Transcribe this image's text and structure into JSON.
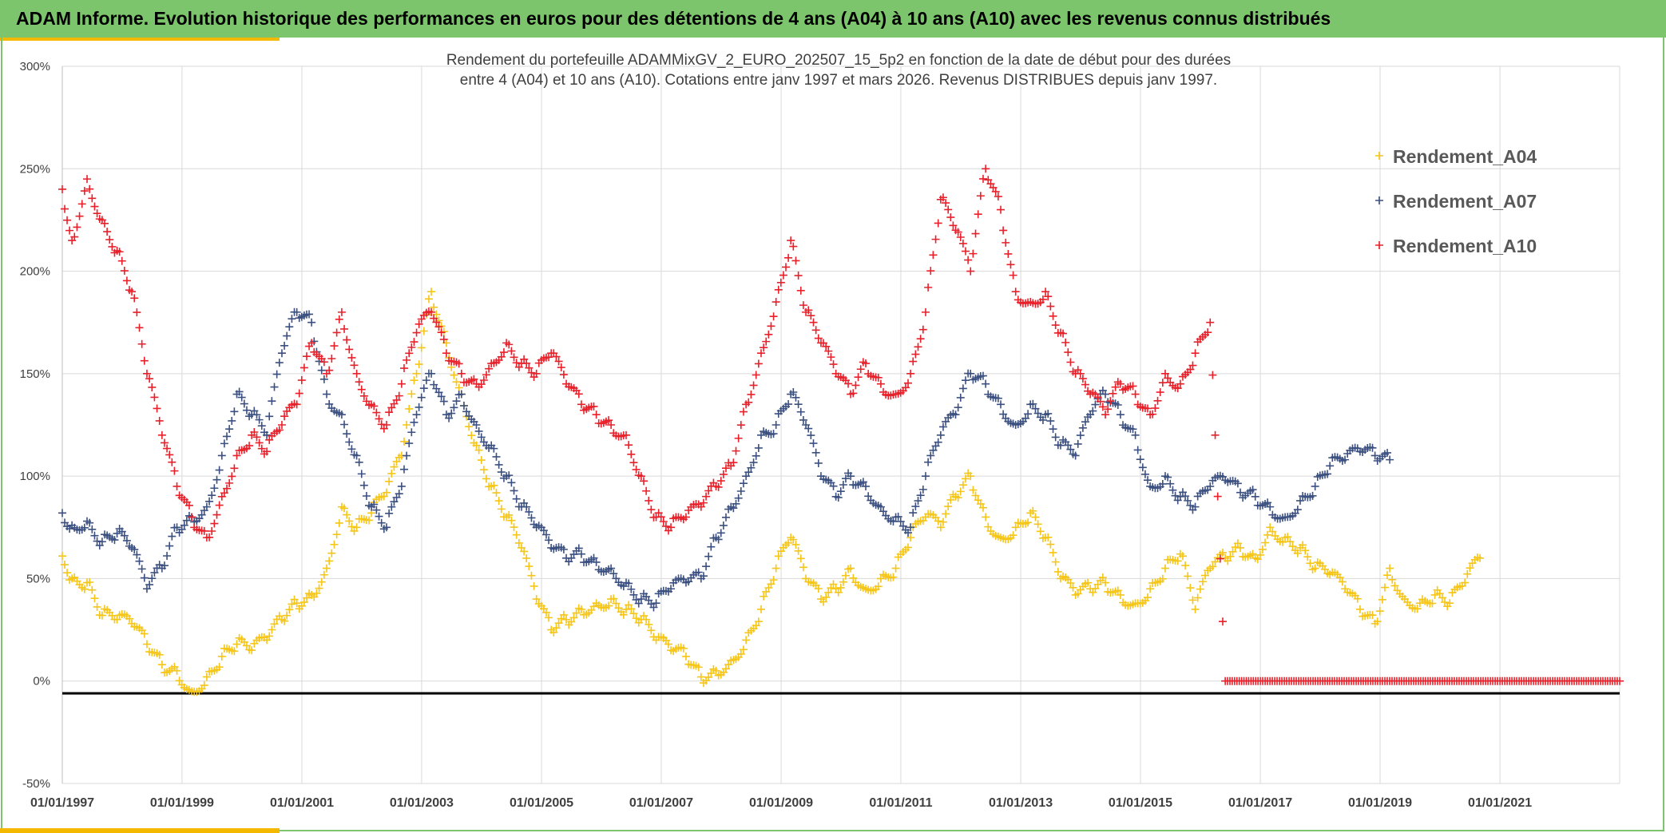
{
  "header": {
    "title": "ADAM Informe. Evolution historique des performances en euros pour des détentions de 4 ans (A04) à 10 ans (A10) avec les revenus connus distribués"
  },
  "colors": {
    "header_bg": "#7dc56c",
    "accent": "#f5b800",
    "A04": "#f5c518",
    "A07": "#3b5080",
    "A10": "#e8202a"
  },
  "chart_data": {
    "type": "scatter",
    "title_line1": "Rendement du portefeuille ADAMMixGV_2_EURO_202507_15_5p2  en fonction de la date de début pour des durées",
    "title_line2": "entre 4 (A04) et 10 ans (A10). Cotations entre janv 1997 et mars 2026. Revenus DISTRIBUES depuis janv 1997.",
    "x_axis": {
      "type": "date",
      "min": "1997-01-01",
      "max": "2023-01-01",
      "tick_labels": [
        "01/01/1997",
        "01/01/1999",
        "01/01/2001",
        "01/01/2003",
        "01/01/2005",
        "01/01/2007",
        "01/01/2009",
        "01/01/2011",
        "01/01/2013",
        "01/01/2015",
        "01/01/2017",
        "01/01/2019",
        "01/01/2021"
      ]
    },
    "y_axis": {
      "min": -50,
      "max": 300,
      "step": 50,
      "unit": "%",
      "tick_labels": [
        "300%",
        "250%",
        "200%",
        "150%",
        "100%",
        "50%",
        "0%",
        "-50%"
      ]
    },
    "grid": true,
    "legend": {
      "position": "top-right"
    },
    "reference_line_y": -6,
    "series": [
      {
        "name": "Rendement_A04",
        "color": "#f5c518",
        "points": [
          [
            "1997-01-01",
            61
          ],
          [
            "1997-03-01",
            50
          ],
          [
            "1997-06-01",
            48
          ],
          [
            "1997-09-01",
            32
          ],
          [
            "1997-12-01",
            30
          ],
          [
            "1998-03-01",
            28
          ],
          [
            "1998-06-01",
            18
          ],
          [
            "1998-09-01",
            8
          ],
          [
            "1998-12-01",
            5
          ],
          [
            "1999-03-01",
            -5
          ],
          [
            "1999-06-01",
            2
          ],
          [
            "1999-09-01",
            12
          ],
          [
            "1999-12-01",
            18
          ],
          [
            "2000-03-01",
            15
          ],
          [
            "2000-06-01",
            20
          ],
          [
            "2000-09-01",
            30
          ],
          [
            "2000-12-01",
            38
          ],
          [
            "2001-03-01",
            42
          ],
          [
            "2001-06-01",
            55
          ],
          [
            "2001-09-01",
            85
          ],
          [
            "2001-12-01",
            75
          ],
          [
            "2002-03-01",
            82
          ],
          [
            "2002-06-01",
            92
          ],
          [
            "2002-09-01",
            110
          ],
          [
            "2002-12-01",
            150
          ],
          [
            "2003-03-01",
            190
          ],
          [
            "2003-06-01",
            165
          ],
          [
            "2003-09-01",
            140
          ],
          [
            "2003-12-01",
            115
          ],
          [
            "2004-03-01",
            95
          ],
          [
            "2004-06-01",
            80
          ],
          [
            "2004-09-01",
            65
          ],
          [
            "2004-12-01",
            40
          ],
          [
            "2005-03-01",
            25
          ],
          [
            "2005-06-01",
            30
          ],
          [
            "2005-09-01",
            35
          ],
          [
            "2005-12-01",
            38
          ],
          [
            "2006-03-01",
            40
          ],
          [
            "2006-06-01",
            35
          ],
          [
            "2006-09-01",
            30
          ],
          [
            "2006-12-01",
            20
          ],
          [
            "2007-03-01",
            15
          ],
          [
            "2007-06-01",
            12
          ],
          [
            "2007-09-01",
            2
          ],
          [
            "2007-12-01",
            5
          ],
          [
            "2008-03-01",
            10
          ],
          [
            "2008-06-01",
            20
          ],
          [
            "2008-09-01",
            35
          ],
          [
            "2008-12-01",
            55
          ],
          [
            "2009-03-01",
            70
          ],
          [
            "2009-06-01",
            50
          ],
          [
            "2009-09-01",
            40
          ],
          [
            "2009-12-01",
            45
          ],
          [
            "2010-03-01",
            55
          ],
          [
            "2010-06-01",
            45
          ],
          [
            "2010-09-01",
            50
          ],
          [
            "2010-12-01",
            55
          ],
          [
            "2011-03-01",
            70
          ],
          [
            "2011-06-01",
            80
          ],
          [
            "2011-09-01",
            75
          ],
          [
            "2011-12-01",
            90
          ],
          [
            "2012-03-01",
            100
          ],
          [
            "2012-06-01",
            80
          ],
          [
            "2012-09-01",
            70
          ],
          [
            "2012-12-01",
            75
          ],
          [
            "2013-03-01",
            82
          ],
          [
            "2013-06-01",
            70
          ],
          [
            "2013-09-01",
            50
          ],
          [
            "2013-12-01",
            42
          ],
          [
            "2014-03-01",
            45
          ],
          [
            "2014-06-01",
            48
          ],
          [
            "2014-09-01",
            42
          ],
          [
            "2014-12-01",
            38
          ],
          [
            "2015-03-01",
            45
          ],
          [
            "2015-06-01",
            55
          ],
          [
            "2015-09-01",
            62
          ],
          [
            "2015-12-01",
            35
          ],
          [
            "2016-03-01",
            55
          ],
          [
            "2016-06-01",
            60
          ],
          [
            "2016-09-01",
            65
          ],
          [
            "2016-12-01",
            60
          ],
          [
            "2017-03-01",
            75
          ],
          [
            "2017-06-01",
            70
          ],
          [
            "2017-09-01",
            65
          ],
          [
            "2017-12-01",
            55
          ],
          [
            "2018-03-01",
            52
          ],
          [
            "2018-06-01",
            45
          ],
          [
            "2018-09-01",
            35
          ],
          [
            "2018-12-01",
            28
          ],
          [
            "2019-03-01",
            55
          ],
          [
            "2019-06-01",
            40
          ],
          [
            "2019-09-01",
            38
          ],
          [
            "2019-12-01",
            42
          ],
          [
            "2020-03-01",
            38
          ],
          [
            "2020-06-01",
            48
          ],
          [
            "2020-09-01",
            60
          ]
        ]
      },
      {
        "name": "Rendement_A07",
        "color": "#3b5080",
        "points": [
          [
            "1997-01-01",
            82
          ],
          [
            "1997-03-01",
            76
          ],
          [
            "1997-06-01",
            78
          ],
          [
            "1997-09-01",
            68
          ],
          [
            "1997-12-01",
            72
          ],
          [
            "1998-03-01",
            65
          ],
          [
            "1998-06-01",
            45
          ],
          [
            "1998-09-01",
            55
          ],
          [
            "1998-12-01",
            75
          ],
          [
            "1999-03-01",
            80
          ],
          [
            "1999-06-01",
            85
          ],
          [
            "1999-09-01",
            110
          ],
          [
            "1999-12-01",
            140
          ],
          [
            "2000-03-01",
            130
          ],
          [
            "2000-06-01",
            120
          ],
          [
            "2000-09-01",
            160
          ],
          [
            "2000-12-01",
            180
          ],
          [
            "2001-03-01",
            175
          ],
          [
            "2001-06-01",
            140
          ],
          [
            "2001-09-01",
            130
          ],
          [
            "2001-12-01",
            110
          ],
          [
            "2002-03-01",
            85
          ],
          [
            "2002-06-01",
            75
          ],
          [
            "2002-09-01",
            95
          ],
          [
            "2002-12-01",
            130
          ],
          [
            "2003-03-01",
            150
          ],
          [
            "2003-06-01",
            130
          ],
          [
            "2003-09-01",
            140
          ],
          [
            "2003-12-01",
            125
          ],
          [
            "2004-03-01",
            115
          ],
          [
            "2004-06-01",
            100
          ],
          [
            "2004-09-01",
            85
          ],
          [
            "2004-12-01",
            75
          ],
          [
            "2005-03-01",
            65
          ],
          [
            "2005-06-01",
            60
          ],
          [
            "2005-09-01",
            62
          ],
          [
            "2005-12-01",
            58
          ],
          [
            "2006-03-01",
            55
          ],
          [
            "2006-06-01",
            48
          ],
          [
            "2006-09-01",
            40
          ],
          [
            "2006-12-01",
            38
          ],
          [
            "2007-03-01",
            45
          ],
          [
            "2007-06-01",
            48
          ],
          [
            "2007-09-01",
            50
          ],
          [
            "2007-12-01",
            70
          ],
          [
            "2008-03-01",
            85
          ],
          [
            "2008-06-01",
            100
          ],
          [
            "2008-09-01",
            120
          ],
          [
            "2008-12-01",
            125
          ],
          [
            "2009-03-01",
            140
          ],
          [
            "2009-06-01",
            125
          ],
          [
            "2009-09-01",
            100
          ],
          [
            "2009-12-01",
            90
          ],
          [
            "2010-03-01",
            100
          ],
          [
            "2010-06-01",
            95
          ],
          [
            "2010-09-01",
            85
          ],
          [
            "2010-12-01",
            80
          ],
          [
            "2011-03-01",
            75
          ],
          [
            "2011-06-01",
            100
          ],
          [
            "2011-09-01",
            120
          ],
          [
            "2011-12-01",
            130
          ],
          [
            "2012-03-01",
            150
          ],
          [
            "2012-06-01",
            145
          ],
          [
            "2012-09-01",
            135
          ],
          [
            "2012-12-01",
            125
          ],
          [
            "2013-03-01",
            135
          ],
          [
            "2013-06-01",
            130
          ],
          [
            "2013-09-01",
            115
          ],
          [
            "2013-12-01",
            110
          ],
          [
            "2014-03-01",
            130
          ],
          [
            "2014-06-01",
            140
          ],
          [
            "2014-09-01",
            130
          ],
          [
            "2014-12-01",
            120
          ],
          [
            "2015-03-01",
            95
          ],
          [
            "2015-06-01",
            100
          ],
          [
            "2015-09-01",
            90
          ],
          [
            "2015-12-01",
            85
          ],
          [
            "2016-03-01",
            95
          ],
          [
            "2016-06-01",
            98
          ],
          [
            "2016-09-01",
            92
          ],
          [
            "2016-12-01",
            90
          ],
          [
            "2017-03-01",
            85
          ],
          [
            "2017-06-01",
            80
          ],
          [
            "2017-09-01",
            88
          ],
          [
            "2017-12-01",
            95
          ],
          [
            "2018-03-01",
            105
          ],
          [
            "2018-06-01",
            108
          ],
          [
            "2018-09-01",
            112
          ],
          [
            "2018-12-01",
            110
          ],
          [
            "2019-03-01",
            108
          ]
        ]
      },
      {
        "name": "Rendement_A10",
        "color": "#e8202a",
        "points": [
          [
            "1997-01-01",
            240
          ],
          [
            "1997-03-01",
            215
          ],
          [
            "1997-06-01",
            245
          ],
          [
            "1997-09-01",
            225
          ],
          [
            "1997-12-01",
            210
          ],
          [
            "1998-03-01",
            190
          ],
          [
            "1998-06-01",
            150
          ],
          [
            "1998-09-01",
            120
          ],
          [
            "1998-12-01",
            95
          ],
          [
            "1999-03-01",
            80
          ],
          [
            "1999-06-01",
            70
          ],
          [
            "1999-09-01",
            90
          ],
          [
            "1999-12-01",
            110
          ],
          [
            "2000-03-01",
            120
          ],
          [
            "2000-06-01",
            112
          ],
          [
            "2000-09-01",
            125
          ],
          [
            "2000-12-01",
            135
          ],
          [
            "2001-03-01",
            165
          ],
          [
            "2001-06-01",
            150
          ],
          [
            "2001-09-01",
            180
          ],
          [
            "2001-12-01",
            150
          ],
          [
            "2002-03-01",
            135
          ],
          [
            "2002-06-01",
            125
          ],
          [
            "2002-09-01",
            145
          ],
          [
            "2002-12-01",
            170
          ],
          [
            "2003-03-01",
            180
          ],
          [
            "2003-06-01",
            160
          ],
          [
            "2003-09-01",
            150
          ],
          [
            "2003-12-01",
            145
          ],
          [
            "2004-03-01",
            155
          ],
          [
            "2004-06-01",
            165
          ],
          [
            "2004-09-01",
            155
          ],
          [
            "2004-12-01",
            150
          ],
          [
            "2005-03-01",
            160
          ],
          [
            "2005-06-01",
            145
          ],
          [
            "2005-09-01",
            135
          ],
          [
            "2005-12-01",
            130
          ],
          [
            "2006-03-01",
            125
          ],
          [
            "2006-06-01",
            120
          ],
          [
            "2006-09-01",
            100
          ],
          [
            "2006-12-01",
            80
          ],
          [
            "2007-03-01",
            75
          ],
          [
            "2007-06-01",
            80
          ],
          [
            "2007-09-01",
            85
          ],
          [
            "2007-12-01",
            95
          ],
          [
            "2008-03-01",
            105
          ],
          [
            "2008-06-01",
            135
          ],
          [
            "2008-09-01",
            160
          ],
          [
            "2008-12-01",
            185
          ],
          [
            "2009-03-01",
            215
          ],
          [
            "2009-06-01",
            180
          ],
          [
            "2009-09-01",
            165
          ],
          [
            "2009-12-01",
            150
          ],
          [
            "2010-03-01",
            140
          ],
          [
            "2010-06-01",
            155
          ],
          [
            "2010-09-01",
            145
          ],
          [
            "2010-12-01",
            140
          ],
          [
            "2011-03-01",
            150
          ],
          [
            "2011-06-01",
            180
          ],
          [
            "2011-09-01",
            235
          ],
          [
            "2011-12-01",
            220
          ],
          [
            "2012-03-01",
            200
          ],
          [
            "2012-06-01",
            250
          ],
          [
            "2012-09-01",
            230
          ],
          [
            "2012-12-01",
            190
          ],
          [
            "2013-03-01",
            185
          ],
          [
            "2013-06-01",
            190
          ],
          [
            "2013-09-01",
            170
          ],
          [
            "2013-12-01",
            150
          ],
          [
            "2014-03-01",
            140
          ],
          [
            "2014-06-01",
            130
          ],
          [
            "2014-09-01",
            145
          ],
          [
            "2014-12-01",
            140
          ],
          [
            "2015-03-01",
            130
          ],
          [
            "2015-06-01",
            150
          ],
          [
            "2015-09-01",
            145
          ],
          [
            "2015-12-01",
            160
          ],
          [
            "2016-03-01",
            175
          ],
          [
            "2016-06-01",
            0
          ],
          [
            "2017-01-01",
            0
          ],
          [
            "2018-01-01",
            0
          ],
          [
            "2019-01-01",
            0
          ],
          [
            "2020-01-01",
            0
          ],
          [
            "2021-01-01",
            0
          ],
          [
            "2022-01-01",
            0
          ],
          [
            "2023-01-01",
            0
          ]
        ]
      }
    ]
  }
}
